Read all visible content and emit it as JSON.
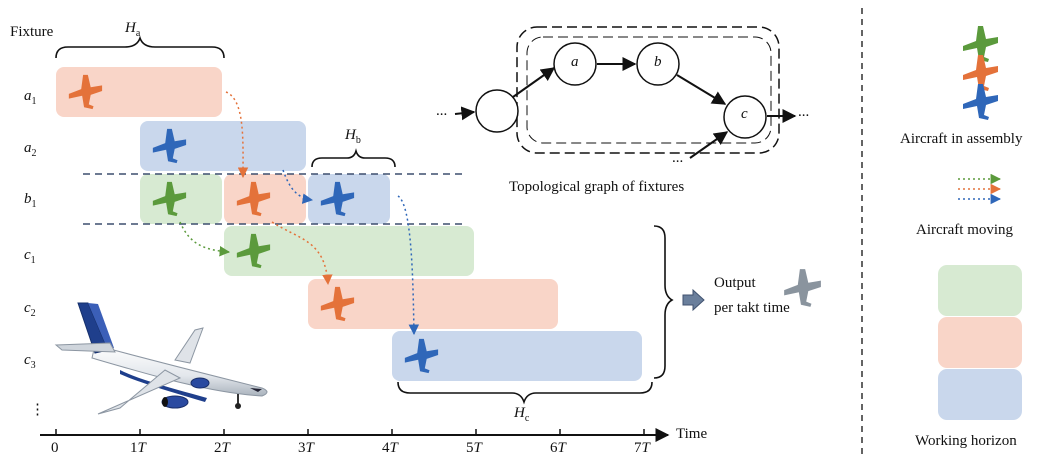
{
  "labels": {
    "fixture": "Fixture",
    "time": "Time",
    "topo_caption": "Topological graph of fixtures",
    "output_line1": "Output",
    "output_line2": "per takt time",
    "aircraft_in_assembly": "Aircraft in assembly",
    "aircraft_moving": "Aircraft moving",
    "working_horizon": "Working horizon",
    "dots_vertical": "⋮",
    "ellipsis": "..."
  },
  "fixtures": [
    {
      "base": "a",
      "sub": "1"
    },
    {
      "base": "a",
      "sub": "2"
    },
    {
      "base": "b",
      "sub": "1"
    },
    {
      "base": "c",
      "sub": "1"
    },
    {
      "base": "c",
      "sub": "2"
    },
    {
      "base": "c",
      "sub": "3"
    }
  ],
  "time_ticks": [
    {
      "coef": "0",
      "unit": ""
    },
    {
      "coef": "1",
      "unit": "T"
    },
    {
      "coef": "2",
      "unit": "T"
    },
    {
      "coef": "3",
      "unit": "T"
    },
    {
      "coef": "4",
      "unit": "T"
    },
    {
      "coef": "5",
      "unit": "T"
    },
    {
      "coef": "6",
      "unit": "T"
    },
    {
      "coef": "7",
      "unit": "T"
    }
  ],
  "horizons": {
    "a": {
      "base": "H",
      "sub": "a"
    },
    "b": {
      "base": "H",
      "sub": "b"
    },
    "c": {
      "base": "H",
      "sub": "c"
    }
  },
  "graph_nodes": {
    "a": "a",
    "b": "b",
    "c": "c"
  },
  "colors": {
    "green_fill": "#d7ead2",
    "orange_fill": "#f9d5c8",
    "blue_fill": "#c9d7ec",
    "green_plane": "#5b9a3c",
    "orange_plane": "#e4723a",
    "blue_plane": "#2f67b9",
    "gray_plane": "#8a949e",
    "dashed_line": "#3d4f6e"
  },
  "bars": [
    {
      "row": 0,
      "start": 0,
      "end": 2,
      "color": "orange"
    },
    {
      "row": 1,
      "start": 1,
      "end": 3,
      "color": "blue"
    },
    {
      "row": 2,
      "start": 1,
      "end": 2,
      "color": "green"
    },
    {
      "row": 2,
      "start": 2,
      "end": 3,
      "color": "orange"
    },
    {
      "row": 2,
      "start": 3,
      "end": 4,
      "color": "blue"
    },
    {
      "row": 3,
      "start": 2,
      "end": 5,
      "color": "green"
    },
    {
      "row": 4,
      "start": 3,
      "end": 6,
      "color": "orange"
    },
    {
      "row": 5,
      "start": 4,
      "end": 7,
      "color": "blue"
    }
  ]
}
